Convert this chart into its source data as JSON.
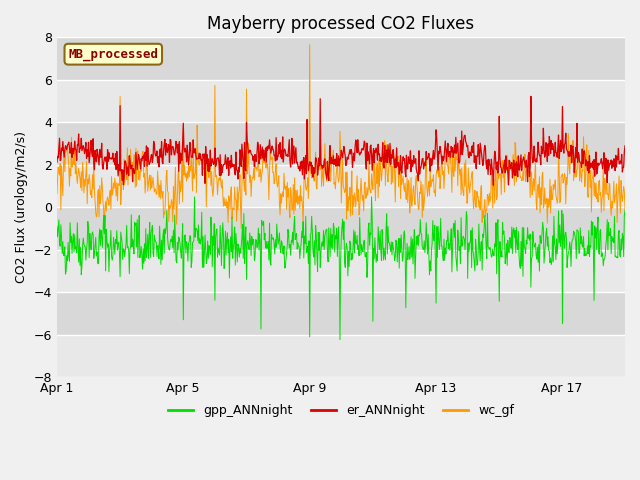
{
  "title": "Mayberry processed CO2 Fluxes",
  "ylabel": "CO2 Flux (urology/m2/s)",
  "ylim": [
    -8,
    8
  ],
  "yticks": [
    -8,
    -6,
    -4,
    -2,
    0,
    2,
    4,
    6,
    8
  ],
  "n_days": 18,
  "n_per_day": 48,
  "legend_label": "MB_processed",
  "legend_label_color": "#8b0000",
  "legend_box_facecolor": "#ffffcc",
  "legend_box_edgecolor": "#8b6914",
  "series_colors": {
    "gpp_ANNnight": "#00dd00",
    "er_ANNnight": "#dd0000",
    "wc_gf": "#ff9900"
  },
  "series_labels": [
    "gpp_ANNnight",
    "er_ANNnight",
    "wc_gf"
  ],
  "xtick_labels": [
    "Apr 1",
    "Apr 5",
    "Apr 9",
    "Apr 13",
    "Apr 17"
  ],
  "xtick_positions": [
    0,
    4,
    8,
    12,
    16
  ],
  "background_color": "#f0f0f0",
  "plot_bg_color": "#d8d8d8",
  "white_band_color": "#e8e8e8",
  "title_fontsize": 12,
  "axis_fontsize": 9,
  "legend_fontsize": 9,
  "linewidth_gpp": 0.7,
  "linewidth_er": 0.9,
  "linewidth_wc": 0.7
}
